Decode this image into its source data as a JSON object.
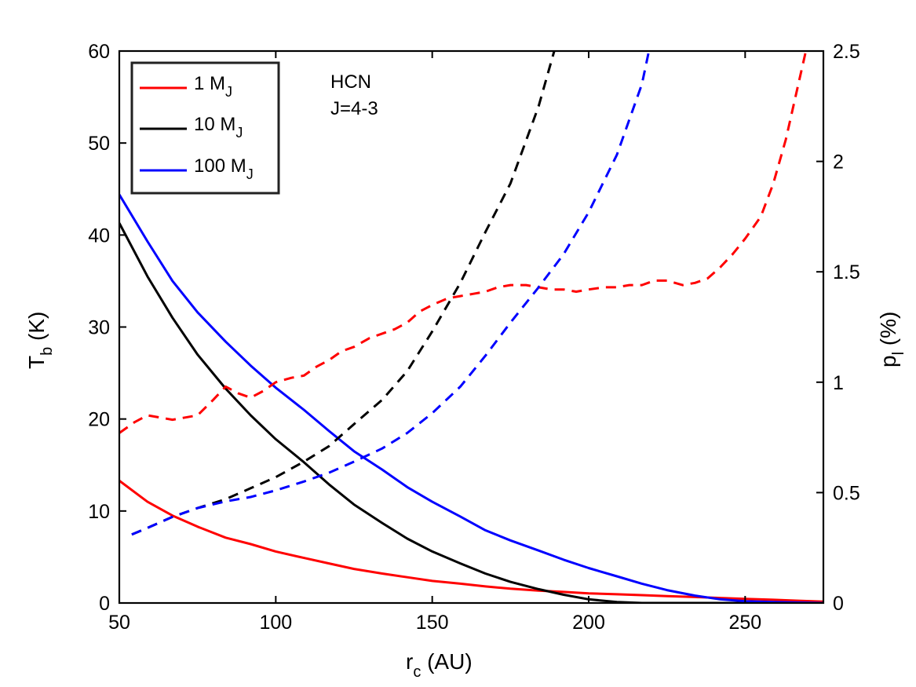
{
  "chart_data": {
    "type": "line",
    "title": "",
    "annotation": {
      "line1": "HCN",
      "line2": "J=4-3"
    },
    "x": {
      "label_main": "r",
      "label_sub": "c",
      "label_rest": " (AU)",
      "range": [
        50,
        275
      ],
      "ticks": [
        50,
        100,
        150,
        200,
        250
      ],
      "tick_labels": [
        "50",
        "100",
        "150",
        "200",
        "250"
      ]
    },
    "y_left": {
      "label_main": "T",
      "label_sub": "b",
      "label_rest": " (K)",
      "range": [
        0,
        60
      ],
      "ticks": [
        0,
        10,
        20,
        30,
        40,
        50,
        60
      ],
      "tick_labels": [
        "0",
        "10",
        "20",
        "30",
        "40",
        "50",
        "60"
      ]
    },
    "y_right": {
      "label_main": "p",
      "label_sub": "l",
      "label_rest": " (%)",
      "range": [
        0,
        2.5
      ],
      "ticks": [
        0,
        0.5,
        1,
        1.5,
        2,
        2.5
      ],
      "tick_labels": [
        "0",
        "0.5",
        "1",
        "1.5",
        "2",
        "2.5"
      ]
    },
    "legend": {
      "position": "top-left",
      "entries": [
        {
          "main": "1 M",
          "sub": "J",
          "color": "#ff0000"
        },
        {
          "main": "10 M",
          "sub": "J",
          "color": "#000000"
        },
        {
          "main": "100 M",
          "sub": "J",
          "color": "#0000ff"
        }
      ]
    },
    "series": [
      {
        "name": "1 MJ Tb",
        "axis": "left",
        "style": "solid",
        "color": "#ff0000",
        "x": [
          50,
          59,
          67,
          75,
          84,
          92,
          100,
          109,
          117,
          125,
          134,
          142,
          150,
          159,
          167,
          175,
          184,
          192,
          200,
          209,
          217,
          225,
          234,
          242,
          250,
          259,
          267,
          275
        ],
        "y": [
          13.3,
          11.0,
          9.5,
          8.3,
          7.1,
          6.4,
          5.6,
          4.9,
          4.3,
          3.7,
          3.2,
          2.8,
          2.4,
          2.1,
          1.8,
          1.55,
          1.35,
          1.2,
          1.05,
          0.95,
          0.85,
          0.75,
          0.65,
          0.55,
          0.45,
          0.35,
          0.25,
          0.15
        ]
      },
      {
        "name": "10 MJ Tb",
        "axis": "left",
        "style": "solid",
        "color": "#000000",
        "x": [
          50,
          59,
          67,
          75,
          84,
          92,
          100,
          109,
          117,
          125,
          134,
          142,
          150,
          159,
          167,
          175,
          184,
          192,
          200,
          209,
          217,
          225,
          234,
          242,
          250,
          259,
          267,
          275
        ],
        "y": [
          41.3,
          35.5,
          31.0,
          27.0,
          23.3,
          20.4,
          17.8,
          15.3,
          12.9,
          10.7,
          8.7,
          7.0,
          5.6,
          4.3,
          3.2,
          2.3,
          1.5,
          0.9,
          0.4,
          0.1,
          0.0,
          0.0,
          0.0,
          0.0,
          0.0,
          0.0,
          0.0,
          0.0
        ]
      },
      {
        "name": "100 MJ Tb",
        "axis": "left",
        "style": "solid",
        "color": "#0000ff",
        "x": [
          50,
          59,
          67,
          75,
          84,
          92,
          100,
          109,
          117,
          125,
          134,
          142,
          150,
          159,
          167,
          175,
          184,
          192,
          200,
          209,
          217,
          225,
          234,
          242,
          250,
          259,
          267,
          275
        ],
        "y": [
          44.4,
          39.3,
          35.0,
          31.6,
          28.4,
          25.8,
          23.4,
          21.0,
          18.7,
          16.5,
          14.5,
          12.6,
          11.0,
          9.4,
          7.9,
          6.8,
          5.7,
          4.7,
          3.8,
          2.9,
          2.1,
          1.4,
          0.8,
          0.4,
          0.2,
          0.1,
          0.05,
          0.0
        ]
      },
      {
        "name": "1 MJ pl",
        "axis": "right",
        "style": "dashed",
        "color": "#ff0000",
        "x": [
          50,
          55,
          59,
          63,
          67,
          71,
          75,
          80,
          84,
          88,
          92,
          96,
          100,
          105,
          109,
          113,
          117,
          121,
          125,
          130,
          134,
          138,
          142,
          146,
          150,
          155,
          159,
          163,
          167,
          171,
          175,
          180,
          184,
          188,
          192,
          196,
          200,
          205,
          209,
          213,
          217,
          221,
          225,
          230,
          234,
          238,
          242,
          246,
          250,
          255,
          259,
          263,
          267,
          271
        ],
        "y": [
          0.77,
          0.82,
          0.85,
          0.84,
          0.83,
          0.84,
          0.85,
          0.92,
          0.98,
          0.95,
          0.93,
          0.96,
          1.0,
          1.02,
          1.03,
          1.07,
          1.1,
          1.14,
          1.16,
          1.2,
          1.22,
          1.24,
          1.27,
          1.32,
          1.35,
          1.38,
          1.39,
          1.4,
          1.41,
          1.43,
          1.44,
          1.44,
          1.43,
          1.42,
          1.42,
          1.41,
          1.42,
          1.43,
          1.43,
          1.44,
          1.44,
          1.46,
          1.46,
          1.44,
          1.45,
          1.47,
          1.52,
          1.58,
          1.65,
          1.75,
          1.9,
          2.1,
          2.35,
          2.6
        ]
      },
      {
        "name": "10 MJ pl",
        "axis": "right",
        "style": "dashed",
        "color": "#000000",
        "x": [
          54,
          59,
          67,
          75,
          84,
          92,
          100,
          109,
          117,
          125,
          134,
          142,
          150,
          159,
          167,
          175,
          184,
          190
        ],
        "y": [
          0.31,
          0.34,
          0.39,
          0.43,
          0.47,
          0.52,
          0.57,
          0.64,
          0.71,
          0.81,
          0.92,
          1.05,
          1.23,
          1.45,
          1.68,
          1.9,
          2.25,
          2.55
        ]
      },
      {
        "name": "100 MJ pl",
        "axis": "right",
        "style": "dashed",
        "color": "#0000ff",
        "x": [
          54,
          59,
          67,
          75,
          84,
          92,
          100,
          109,
          117,
          125,
          134,
          142,
          150,
          159,
          167,
          175,
          184,
          192,
          200,
          209,
          217,
          220
        ],
        "y": [
          0.31,
          0.34,
          0.39,
          0.43,
          0.46,
          0.48,
          0.51,
          0.55,
          0.59,
          0.64,
          0.7,
          0.77,
          0.86,
          0.98,
          1.12,
          1.27,
          1.43,
          1.58,
          1.77,
          2.03,
          2.35,
          2.55
        ]
      }
    ]
  }
}
